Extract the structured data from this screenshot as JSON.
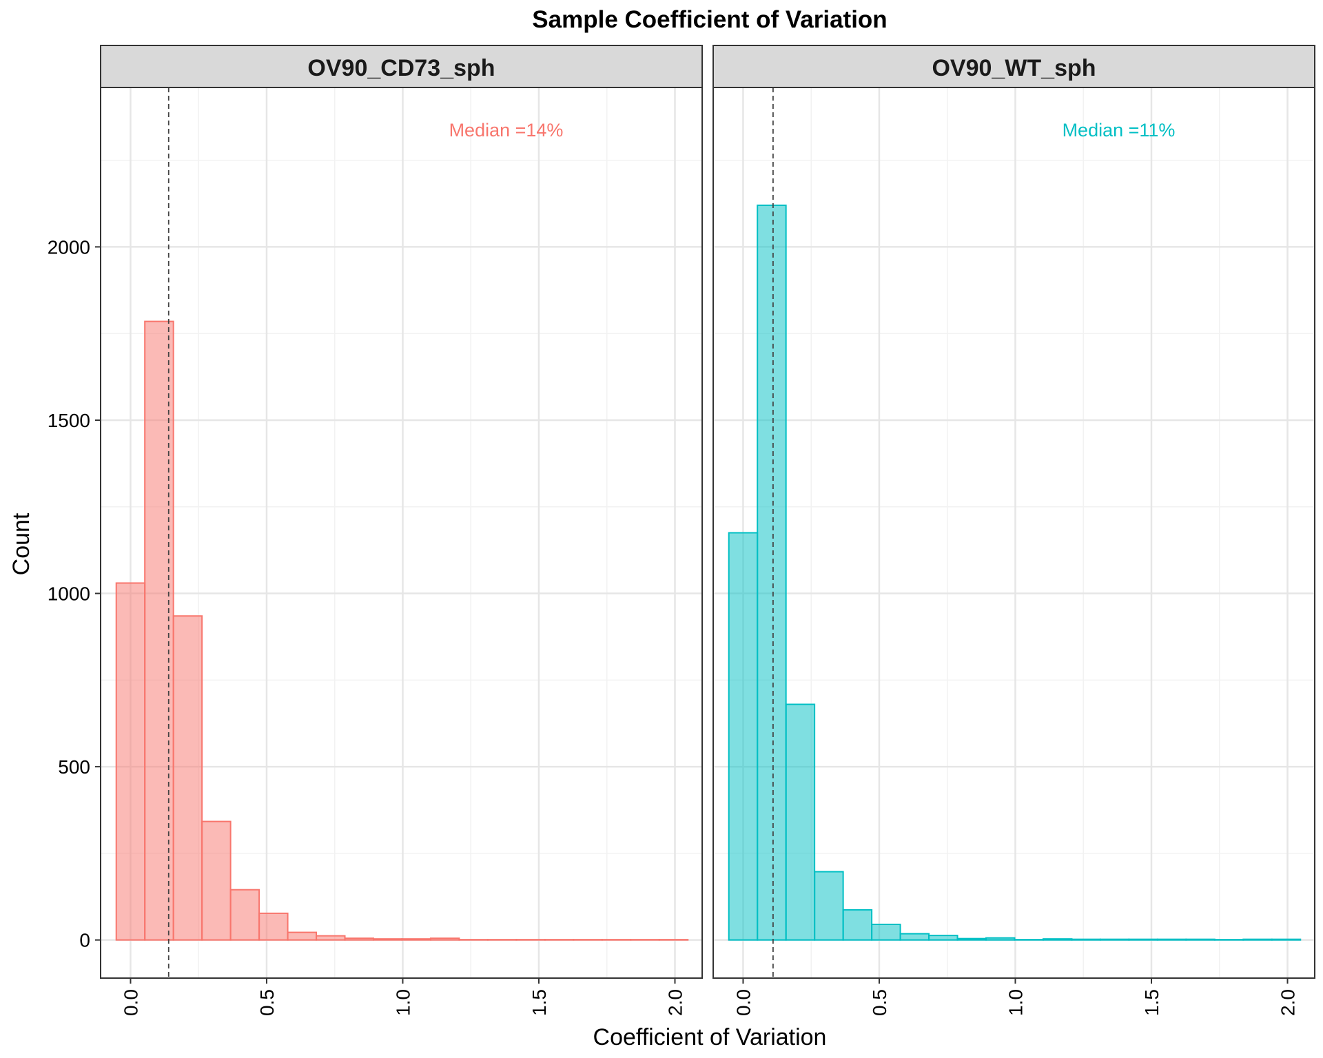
{
  "title": "Sample Coefficient of Variation",
  "xlabel": "Coefficient of Variation",
  "ylabel": "Count",
  "chart_data": {
    "type": "bar",
    "title": "Sample Coefficient of Variation",
    "xlabel": "Coefficient of Variation",
    "ylabel": "Count",
    "xlim": [
      -0.11,
      2.1
    ],
    "ylim": [
      -110,
      2460
    ],
    "xticks": [
      "0.0",
      "0.5",
      "1.0",
      "1.5",
      "2.0"
    ],
    "xtick_values": [
      0,
      0.5,
      1.0,
      1.5,
      2.0
    ],
    "yticks": [
      "0",
      "500",
      "1000",
      "1500",
      "2000"
    ],
    "ytick_values": [
      0,
      500,
      1000,
      1500,
      2000
    ],
    "bin_width": 0.105,
    "bin_start": -0.0525,
    "grid": true,
    "facet_strip_color": "#d9d9d9",
    "panels": [
      {
        "name": "OV90_CD73_sph",
        "color": "#F8766D",
        "fill": "#F8766D",
        "median": 0.14,
        "median_label": "Median =14%",
        "bin_centers": [
          0.0,
          0.105,
          0.21,
          0.315,
          0.42,
          0.525,
          0.63,
          0.735,
          0.84,
          0.945,
          1.05,
          1.155,
          1.26,
          1.365,
          1.47,
          1.575,
          1.68,
          1.785,
          1.89,
          1.995
        ],
        "counts": [
          1030,
          1785,
          935,
          342,
          145,
          77,
          22,
          12,
          5,
          3,
          3,
          5,
          1,
          1,
          1,
          1,
          1,
          1,
          1,
          1
        ]
      },
      {
        "name": "OV90_WT_sph",
        "color": "#00BFC4",
        "fill": "#00BFC4",
        "median": 0.11,
        "median_label": "Median =11%",
        "bin_centers": [
          0.0,
          0.105,
          0.21,
          0.315,
          0.42,
          0.525,
          0.63,
          0.735,
          0.84,
          0.945,
          1.05,
          1.155,
          1.26,
          1.365,
          1.47,
          1.575,
          1.68,
          1.785,
          1.89,
          1.995
        ],
        "counts": [
          1175,
          2120,
          680,
          197,
          87,
          45,
          18,
          13,
          4,
          6,
          1,
          3,
          2,
          2,
          2,
          2,
          2,
          1,
          2,
          2
        ]
      }
    ]
  }
}
